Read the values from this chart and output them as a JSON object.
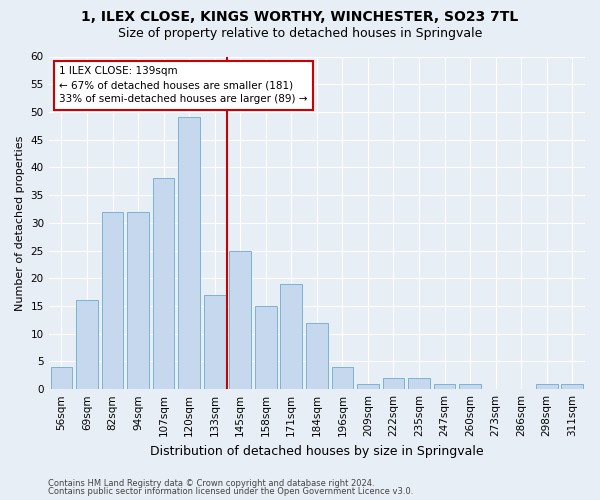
{
  "title1": "1, ILEX CLOSE, KINGS WORTHY, WINCHESTER, SO23 7TL",
  "title2": "Size of property relative to detached houses in Springvale",
  "xlabel": "Distribution of detached houses by size in Springvale",
  "ylabel": "Number of detached properties",
  "bar_labels": [
    "56sqm",
    "69sqm",
    "82sqm",
    "94sqm",
    "107sqm",
    "120sqm",
    "133sqm",
    "145sqm",
    "158sqm",
    "171sqm",
    "184sqm",
    "196sqm",
    "209sqm",
    "222sqm",
    "235sqm",
    "247sqm",
    "260sqm",
    "273sqm",
    "286sqm",
    "298sqm",
    "311sqm"
  ],
  "bar_values": [
    4,
    16,
    32,
    32,
    38,
    49,
    17,
    25,
    15,
    19,
    12,
    4,
    1,
    2,
    2,
    1,
    1,
    0,
    0,
    1,
    1
  ],
  "bar_color": "#c5d8ed",
  "bar_edge_color": "#7ab3d4",
  "ylim": [
    0,
    60
  ],
  "yticks": [
    0,
    5,
    10,
    15,
    20,
    25,
    30,
    35,
    40,
    45,
    50,
    55,
    60
  ],
  "vline_x": 6.5,
  "vline_color": "#cc0000",
  "annotation_text": "1 ILEX CLOSE: 139sqm\n← 67% of detached houses are smaller (181)\n33% of semi-detached houses are larger (89) →",
  "annotation_box_color": "#ffffff",
  "annotation_box_edge": "#cc0000",
  "footnote1": "Contains HM Land Registry data © Crown copyright and database right 2024.",
  "footnote2": "Contains public sector information licensed under the Open Government Licence v3.0.",
  "bg_color": "#e8eef5",
  "grid_color": "#ffffff",
  "title1_fontsize": 10,
  "title2_fontsize": 9,
  "ylabel_fontsize": 8,
  "xlabel_fontsize": 9,
  "tick_fontsize": 7.5,
  "annot_fontsize": 7.5,
  "footnote_fontsize": 6
}
